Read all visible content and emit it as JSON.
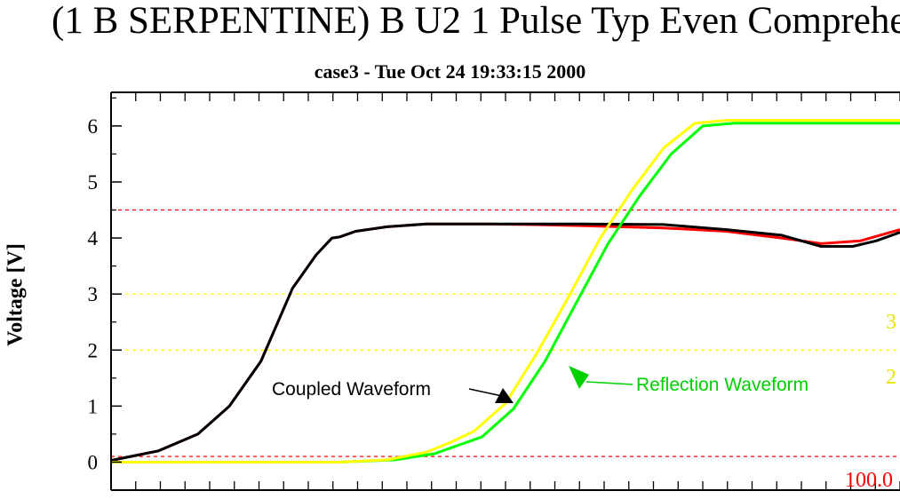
{
  "chart_data": {
    "type": "line",
    "title": "(1 B SERPENTINE) B U2 1 Pulse Typ Even Comprehe",
    "subtitle": "case3 - Tue Oct 24 19:33:15 2000",
    "xlabel": "",
    "ylabel": "Voltage [V]",
    "xlim": [
      0,
      100
    ],
    "ylim": [
      -0.5,
      6.6
    ],
    "yticks": [
      0,
      1,
      2,
      3,
      4,
      5,
      6
    ],
    "grid": false,
    "thresholds": [
      {
        "value": 4.5,
        "color": "#ff0000"
      },
      {
        "value": 3.0,
        "color": "#ffff00"
      },
      {
        "value": 2.0,
        "color": "#ffff00"
      },
      {
        "value": 0.1,
        "color": "#ff0000"
      }
    ],
    "edge_labels": [
      {
        "text": "3",
        "color": "#e6e600"
      },
      {
        "text": "2",
        "color": "#e6e600"
      },
      {
        "text": "100.0",
        "color": "#ff0000"
      }
    ],
    "series": [
      {
        "color": "#ff0000",
        "width": 2,
        "x": [
          0,
          6,
          11,
          15,
          19,
          23,
          26,
          28,
          29,
          31,
          35,
          40,
          47,
          53,
          60,
          70,
          78,
          85,
          90,
          95,
          100
        ],
        "y": [
          0.03,
          0.2,
          0.5,
          1.0,
          1.8,
          3.1,
          3.7,
          4.0,
          4.02,
          4.12,
          4.2,
          4.25,
          4.25,
          4.24,
          4.22,
          4.18,
          4.12,
          4.0,
          3.9,
          3.95,
          4.15
        ]
      },
      {
        "color": "#000000",
        "width": 2,
        "x": [
          0,
          6,
          11,
          15,
          19,
          23,
          26,
          28,
          29,
          31,
          35,
          40,
          47,
          53,
          60,
          70,
          78,
          85,
          90,
          94,
          97,
          100
        ],
        "y": [
          0.03,
          0.2,
          0.5,
          1.0,
          1.8,
          3.1,
          3.7,
          4.0,
          4.02,
          4.12,
          4.2,
          4.25,
          4.25,
          4.25,
          4.25,
          4.24,
          4.15,
          4.05,
          3.85,
          3.85,
          3.95,
          4.1
        ]
      },
      {
        "color": "#00ff00",
        "width": 2,
        "x": [
          0,
          29,
          36,
          41,
          44,
          47,
          51,
          55,
          59,
          63,
          67,
          71,
          75,
          79,
          100
        ],
        "y": [
          0.0,
          0.0,
          0.04,
          0.15,
          0.3,
          0.45,
          0.95,
          1.8,
          2.85,
          3.9,
          4.75,
          5.5,
          6.0,
          6.05,
          6.05
        ]
      },
      {
        "color": "#ffff00",
        "width": 2,
        "x": [
          0,
          29,
          35,
          40,
          43,
          46,
          50,
          54,
          58,
          62,
          66,
          70,
          74,
          78,
          100
        ],
        "y": [
          0.0,
          0.0,
          0.04,
          0.18,
          0.35,
          0.55,
          1.05,
          1.95,
          2.95,
          4.0,
          4.85,
          5.6,
          6.05,
          6.1,
          6.1
        ]
      }
    ],
    "annotations": [
      {
        "text": "Coupled Waveform",
        "color": "#000000"
      },
      {
        "text": "Reflection Waveform",
        "color": "#00d000"
      }
    ]
  }
}
